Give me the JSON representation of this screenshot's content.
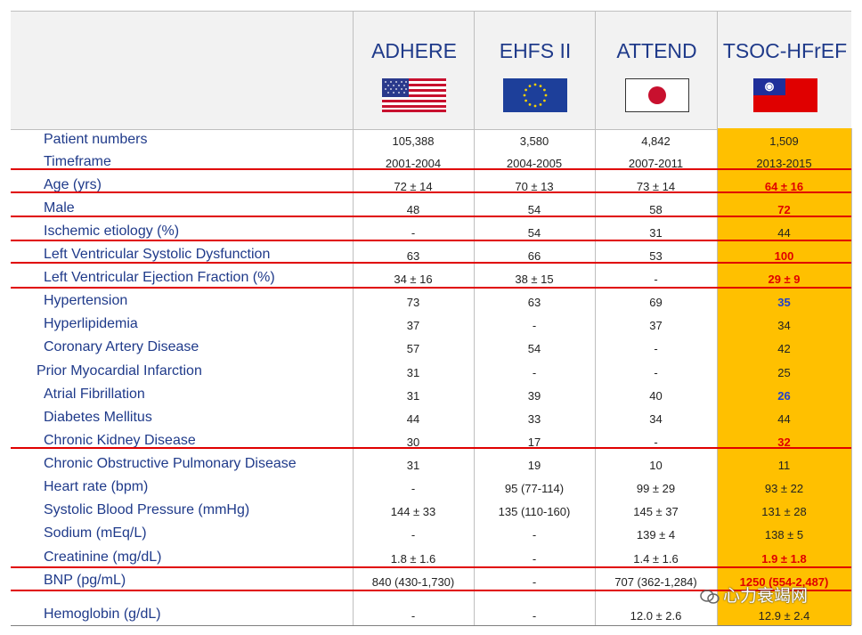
{
  "registries": [
    {
      "name": "ADHERE",
      "flag": "usa-flag-icon"
    },
    {
      "name": "EHFS II",
      "flag": "eu-flag-icon"
    },
    {
      "name": "ATTEND",
      "flag": "japan-flag-icon"
    },
    {
      "name": "TSOC-HFrEF",
      "flag": "taiwan-flag-icon"
    }
  ],
  "rows": [
    {
      "label": "Patient numbers",
      "v": [
        "105,388",
        "3,580",
        "4,842",
        "1,509"
      ],
      "style": ""
    },
    {
      "label": "Timeframe",
      "v": [
        "2001-2004",
        "2004-2005",
        "2007-2011",
        "2013-2015"
      ],
      "style": ""
    },
    {
      "label": "Age (yrs)",
      "v": [
        "72 ± 14",
        "70 ± 13",
        "73 ± 14",
        "64 ± 16"
      ],
      "style": "red"
    },
    {
      "label": "Male",
      "v": [
        "48",
        "54",
        "58",
        "72"
      ],
      "style": "red"
    },
    {
      "label": "Ischemic etiology (%)",
      "v": [
        "-",
        "54",
        "31",
        "44"
      ],
      "style": ""
    },
    {
      "label": "Left Ventricular Systolic Dysfunction",
      "v": [
        "63",
        "66",
        "53",
        "100"
      ],
      "style": "red"
    },
    {
      "label": "Left Ventricular Ejection Fraction (%)",
      "v": [
        "34 ± 16",
        "38 ± 15",
        "-",
        "29 ± 9"
      ],
      "style": "red"
    },
    {
      "label": "Hypertension",
      "v": [
        "73",
        "63",
        "69",
        "35"
      ],
      "style": "blue"
    },
    {
      "label": "Hyperlipidemia",
      "v": [
        "37",
        "-",
        "37",
        "34"
      ],
      "style": ""
    },
    {
      "label": "Coronary Artery Disease",
      "v": [
        "57",
        "54",
        "-",
        "42"
      ],
      "style": ""
    },
    {
      "label": "Prior Myocardial Infarction",
      "v": [
        "31",
        "-",
        "-",
        "25"
      ],
      "style": ""
    },
    {
      "label": "Atrial Fibrillation",
      "v": [
        "31",
        "39",
        "40",
        "26"
      ],
      "style": "blue"
    },
    {
      "label": "Diabetes Mellitus",
      "v": [
        "44",
        "33",
        "34",
        "44"
      ],
      "style": ""
    },
    {
      "label": "Chronic Kidney Disease",
      "v": [
        "30",
        "17",
        "-",
        "32"
      ],
      "style": "red"
    },
    {
      "label": "Chronic Obstructive Pulmonary Disease",
      "v": [
        "31",
        "19",
        "10",
        "11"
      ],
      "style": ""
    },
    {
      "label": "Heart rate (bpm)",
      "v": [
        "-",
        "95 (77-114)",
        "99 ± 29",
        "93 ± 22"
      ],
      "style": ""
    },
    {
      "label": "Systolic Blood Pressure (mmHg)",
      "v": [
        "144 ± 33",
        "135 (110-160)",
        "145 ± 37",
        "131 ± 28"
      ],
      "style": ""
    },
    {
      "label": "Sodium (mEq/L)",
      "v": [
        "-",
        "-",
        "139 ± 4",
        "138 ± 5"
      ],
      "style": ""
    },
    {
      "label": "Creatinine (mg/dL)",
      "v": [
        "1.8 ± 1.6",
        "-",
        "1.4 ± 1.6",
        "1.9 ± 1.8"
      ],
      "style": "red"
    },
    {
      "label": "BNP (pg/mL)",
      "v": [
        "840 (430-1,730)",
        "-",
        "707 (362-1,284)",
        "1250 (554-2,487)"
      ],
      "style": "red"
    },
    {
      "label": "Hemoglobin (g/dL)",
      "v": [
        "-",
        "-",
        "12.0 ± 2.6",
        "12.9 ± 2.4"
      ],
      "style": ""
    }
  ],
  "watermark": "心力衰竭网",
  "colors": {
    "header_text": "#1f3a8a",
    "highlight_column": "#ffc000",
    "emphasis_red": "#e00000",
    "emphasis_blue": "#1f3fcf"
  }
}
